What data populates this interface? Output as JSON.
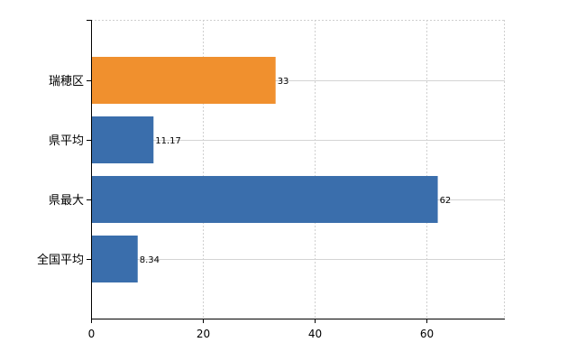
{
  "chart_data": {
    "type": "bar",
    "orientation": "horizontal",
    "categories": [
      "瑞穂区",
      "県平均",
      "県最大",
      "全国平均"
    ],
    "values": [
      33,
      11.17,
      62,
      8.34
    ],
    "value_labels": [
      "33",
      "11.17",
      "62",
      "8.34"
    ],
    "bar_colors": [
      "#f0902e",
      "#3a6eac",
      "#3a6eac",
      "#3a6eac"
    ],
    "xlim": [
      0,
      74
    ],
    "xticks": [
      0,
      20,
      40,
      60
    ],
    "xtick_labels": [
      "0",
      "20",
      "40",
      "60"
    ],
    "grid": true,
    "title": "",
    "xlabel": "",
    "ylabel": ""
  }
}
